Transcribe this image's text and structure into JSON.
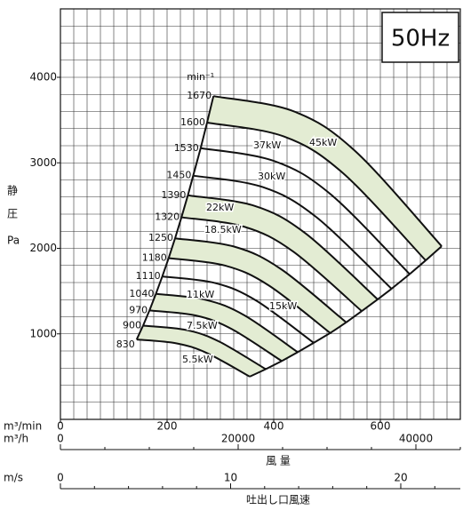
{
  "chart_data": {
    "type": "fan-curve",
    "frequency_label": "50Hz",
    "speed_unit": "min⁻¹",
    "y_label_lines": [
      "静",
      "圧",
      "Pa"
    ],
    "x_unit": "m³/min",
    "xlim": [
      0,
      750
    ],
    "xticks": [
      0,
      200,
      400,
      600
    ],
    "x_grid_step": 25,
    "ylim": [
      0,
      4800
    ],
    "yticks": [
      1000,
      2000,
      3000,
      4000
    ],
    "y_grid_step": 200,
    "x2_unit": "m³/h",
    "x2_label": "風 量",
    "x2lim": [
      0,
      45000
    ],
    "x2ticks": [
      0,
      20000,
      40000
    ],
    "x2_minor_step": 5000,
    "x3_unit": "m/s",
    "x3_label": "吐出し口風速",
    "x3lim": [
      0,
      23.5
    ],
    "x3ticks": [
      0,
      10,
      20
    ],
    "x3_minor_step": 2,
    "grid": true,
    "line_color": "#111",
    "shade_color": "#e3ecd3",
    "shaded_bands": [
      [
        0,
        1
      ],
      [
        4,
        5
      ],
      [
        6,
        7
      ],
      [
        9,
        10
      ],
      [
        11,
        12
      ]
    ],
    "power_labels": [
      "45kW",
      "37kW",
      "30kW",
      "22kW",
      "18.5kW",
      "15kW",
      "11kW",
      "7.5kW",
      "5.5kW"
    ],
    "series": [
      {
        "name": "1670",
        "x": [
          287,
          437,
          553,
          715
        ],
        "values": [
          3780,
          3603,
          3136,
          2025
        ]
      },
      {
        "name": "1600",
        "x": [
          275,
          419,
          530,
          685
        ],
        "values": [
          3470,
          3308,
          2879,
          1859
        ]
      },
      {
        "name": "1530",
        "x": [
          263,
          400,
          507,
          655
        ],
        "values": [
          3171,
          3023,
          2631,
          1699
        ]
      },
      {
        "name": "1450",
        "x": [
          249,
          379,
          480,
          621
        ],
        "values": [
          2850,
          2717,
          2365,
          1527
        ]
      },
      {
        "name": "1390",
        "x": [
          239,
          364,
          460,
          595
        ],
        "values": [
          2620,
          2497,
          2173,
          1403
        ]
      },
      {
        "name": "1320",
        "x": [
          227,
          345,
          437,
          565
        ],
        "values": [
          2363,
          2252,
          1960,
          1266
        ]
      },
      {
        "name": "1250",
        "x": [
          215,
          327,
          414,
          536
        ],
        "values": [
          2117,
          2018,
          1756,
          1134
        ]
      },
      {
        "name": "1180",
        "x": [
          203,
          309,
          391,
          506
        ],
        "values": [
          1886,
          1798,
          1565,
          1010
        ]
      },
      {
        "name": "1110",
        "x": [
          191,
          291,
          368,
          475
        ],
        "values": [
          1671,
          1593,
          1386,
          895
        ]
      },
      {
        "name": "1040",
        "x": [
          179,
          272,
          345,
          445
        ],
        "values": [
          1467,
          1398,
          1217,
          786
        ]
      },
      {
        "name": "970",
        "x": [
          167,
          254,
          321,
          415
        ],
        "values": [
          1274,
          1214,
          1057,
          682
        ]
      },
      {
        "name": "900",
        "x": [
          155,
          236,
          298,
          385
        ],
        "values": [
          1096,
          1045,
          909,
          587
        ]
      },
      {
        "name": "830",
        "x": [
          143,
          217,
          275,
          355
        ],
        "values": [
          934,
          890,
          775,
          500
        ]
      }
    ]
  }
}
